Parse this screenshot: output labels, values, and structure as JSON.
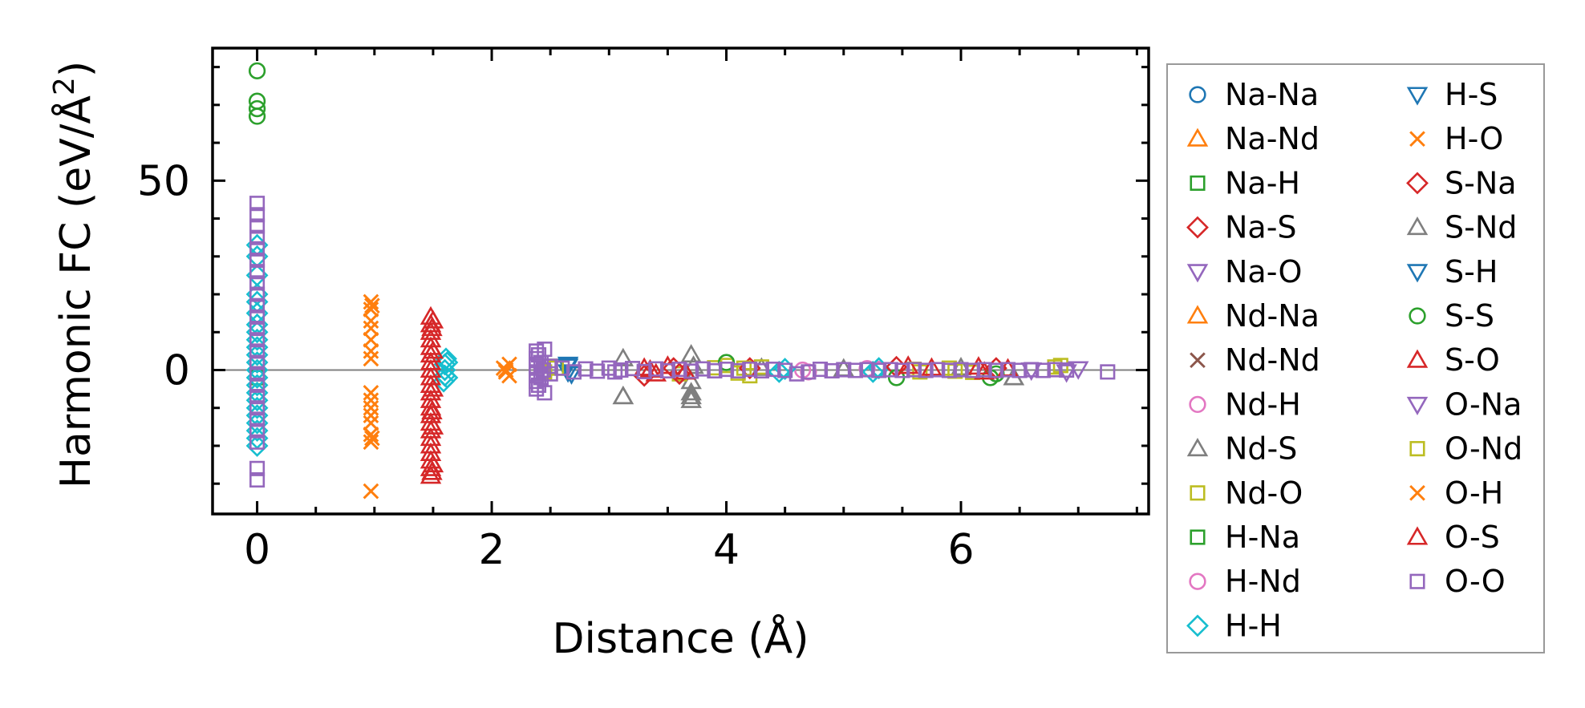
{
  "chart_data": {
    "type": "scatter",
    "xlabel": "Distance (Å)",
    "ylabel": "Harmonic FC (eV/Å²)",
    "ylabel_base": "Harmonic FC (eV/Å",
    "ylabel_sup": "2",
    "ylabel_tail": ")",
    "xlim": [
      -0.38,
      7.6
    ],
    "ylim": [
      -38,
      85
    ],
    "xticks": [
      0,
      2,
      4,
      6
    ],
    "xtick_labels": [
      "0",
      "2",
      "4",
      "6"
    ],
    "yticks": [
      0,
      50
    ],
    "ytick_labels": [
      "0",
      "50"
    ],
    "grid": false,
    "zero_line": true,
    "legend_placement": "outside-right",
    "series": [
      {
        "name": "Na-Na",
        "marker": "circle",
        "color": "#1f77b4",
        "points": []
      },
      {
        "name": "Na-Nd",
        "marker": "triangle-up",
        "color": "#ff7f0e",
        "points": []
      },
      {
        "name": "Na-H",
        "marker": "square",
        "color": "#2ca02c",
        "points": []
      },
      {
        "name": "Na-S",
        "marker": "diamond",
        "color": "#d62728",
        "points": []
      },
      {
        "name": "Na-O",
        "marker": "triangle-down",
        "color": "#9467bd",
        "points": []
      },
      {
        "name": "Nd-Na",
        "marker": "triangle-up",
        "color": "#ff7f0e",
        "points": []
      },
      {
        "name": "Nd-Nd",
        "marker": "x",
        "color": "#8c564b",
        "points": []
      },
      {
        "name": "Nd-H",
        "marker": "circle",
        "color": "#e377c2",
        "points": [
          [
            4.7,
            -0.5
          ],
          [
            5.2,
            0.4
          ]
        ]
      },
      {
        "name": "Nd-S",
        "marker": "triangle-up",
        "color": "#7f7f7f",
        "points": [
          [
            3.12,
            -7
          ],
          [
            3.12,
            3
          ],
          [
            3.7,
            -8
          ],
          [
            3.7,
            -6
          ],
          [
            3.7,
            -3
          ],
          [
            3.7,
            4
          ],
          [
            3.72,
            1
          ],
          [
            4.3,
            0.5
          ],
          [
            5.0,
            0.3
          ],
          [
            6.45,
            -2
          ],
          [
            6.0,
            0.6
          ]
        ]
      },
      {
        "name": "Nd-O",
        "marker": "square",
        "color": "#bcbd22",
        "points": [
          [
            2.45,
            -0.5
          ],
          [
            2.5,
            1
          ],
          [
            3.6,
            -1
          ],
          [
            3.9,
            0.6
          ],
          [
            4.2,
            -1.5
          ],
          [
            4.3,
            0.8
          ],
          [
            4.0,
            1.2
          ],
          [
            4.1,
            -0.8
          ],
          [
            5.65,
            -0.5
          ],
          [
            5.9,
            0.5
          ],
          [
            6.1,
            -0.6
          ],
          [
            6.85,
            1.2
          ]
        ]
      },
      {
        "name": "H-Na",
        "marker": "square",
        "color": "#2ca02c",
        "points": [
          [
            0,
            -1
          ],
          [
            0,
            -2
          ]
        ]
      },
      {
        "name": "H-Nd",
        "marker": "circle",
        "color": "#e377c2",
        "points": [
          [
            4.65,
            0
          ],
          [
            5.3,
            0.2
          ]
        ]
      },
      {
        "name": "H-H",
        "marker": "diamond",
        "color": "#17becf",
        "points": [
          [
            0,
            33
          ],
          [
            0,
            30
          ],
          [
            0,
            25
          ],
          [
            0,
            20
          ],
          [
            0,
            18
          ],
          [
            0,
            15
          ],
          [
            0,
            12
          ],
          [
            0,
            10
          ],
          [
            0,
            8
          ],
          [
            0,
            6
          ],
          [
            0,
            4
          ],
          [
            0,
            2
          ],
          [
            0,
            0
          ],
          [
            0,
            -2
          ],
          [
            0,
            -4
          ],
          [
            0,
            -6
          ],
          [
            0,
            -8
          ],
          [
            0,
            -10
          ],
          [
            0,
            -12
          ],
          [
            0,
            -14
          ],
          [
            0,
            -16
          ],
          [
            0,
            -18
          ],
          [
            0,
            -20
          ],
          [
            1.59,
            -3
          ],
          [
            1.6,
            -1.5
          ],
          [
            1.6,
            0
          ],
          [
            1.6,
            1.5
          ],
          [
            1.61,
            3
          ],
          [
            1.62,
            -2
          ],
          [
            1.62,
            2
          ],
          [
            4.45,
            -0.5
          ],
          [
            4.5,
            0.3
          ],
          [
            5.25,
            -0.5
          ],
          [
            5.3,
            0.5
          ]
        ]
      },
      {
        "name": "H-S",
        "marker": "triangle-down",
        "color": "#1f77b4",
        "points": [
          [
            2.65,
            1.5
          ],
          [
            2.65,
            -0.5
          ]
        ]
      },
      {
        "name": "H-O",
        "marker": "x",
        "color": "#ff7f0e",
        "points": [
          [
            0.97,
            18
          ],
          [
            0.97,
            16
          ],
          [
            0.97,
            13
          ],
          [
            0.97,
            11
          ],
          [
            0.97,
            8
          ],
          [
            0.97,
            5
          ],
          [
            0.97,
            3
          ],
          [
            0.97,
            -6
          ],
          [
            0.97,
            -8
          ],
          [
            0.97,
            -10
          ],
          [
            0.97,
            -12
          ],
          [
            0.97,
            -14
          ],
          [
            0.97,
            -17
          ],
          [
            0.97,
            -19
          ],
          [
            0.97,
            -32
          ],
          [
            2.1,
            0.5
          ],
          [
            2.12,
            -0.5
          ],
          [
            2.15,
            -1.5
          ],
          [
            2.15,
            1.5
          ]
        ]
      },
      {
        "name": "S-Na",
        "marker": "diamond",
        "color": "#d62728",
        "points": [
          [
            3.3,
            -1.5
          ],
          [
            3.55,
            0.5
          ],
          [
            3.6,
            -1
          ],
          [
            4.2,
            0.5
          ],
          [
            5.45,
            0.8
          ],
          [
            6.3,
            0.5
          ]
        ]
      },
      {
        "name": "S-Nd",
        "marker": "triangle-up",
        "color": "#7f7f7f",
        "points": [
          [
            3.12,
            -7
          ],
          [
            3.7,
            -7
          ],
          [
            6.45,
            -2
          ]
        ]
      },
      {
        "name": "S-H",
        "marker": "triangle-down",
        "color": "#1f77b4",
        "points": [
          [
            2.65,
            1
          ],
          [
            2.68,
            -1
          ]
        ]
      },
      {
        "name": "S-S",
        "marker": "circle",
        "color": "#2ca02c",
        "points": [
          [
            0,
            79
          ],
          [
            0,
            71
          ],
          [
            0,
            69
          ],
          [
            0,
            67
          ],
          [
            4.0,
            2
          ],
          [
            5.45,
            -2
          ],
          [
            6.25,
            -2
          ],
          [
            6.3,
            -1
          ]
        ]
      },
      {
        "name": "S-O",
        "marker": "triangle-up",
        "color": "#d62728",
        "points": [
          [
            1.48,
            14
          ],
          [
            1.48,
            12
          ],
          [
            1.48,
            10
          ],
          [
            1.48,
            8
          ],
          [
            1.48,
            6
          ],
          [
            1.48,
            4
          ],
          [
            1.48,
            2
          ],
          [
            1.48,
            0
          ],
          [
            1.48,
            -2
          ],
          [
            1.48,
            -4
          ],
          [
            1.48,
            -6
          ],
          [
            1.48,
            -8
          ],
          [
            1.48,
            -10
          ],
          [
            1.48,
            -12
          ],
          [
            1.48,
            -14
          ],
          [
            1.48,
            -16
          ],
          [
            1.48,
            -18
          ],
          [
            1.48,
            -20
          ],
          [
            1.48,
            -22
          ],
          [
            1.48,
            -24
          ],
          [
            1.48,
            -26
          ],
          [
            1.48,
            -28
          ],
          [
            1.5,
            13
          ],
          [
            1.5,
            5
          ],
          [
            1.5,
            -5
          ],
          [
            1.5,
            -15
          ],
          [
            1.5,
            -25
          ],
          [
            3.3,
            0.5
          ],
          [
            3.4,
            -1
          ],
          [
            3.5,
            1
          ],
          [
            3.65,
            -0.5
          ],
          [
            5.55,
            1
          ],
          [
            5.75,
            0.5
          ],
          [
            6.15,
            0.8
          ],
          [
            6.2,
            -0.5
          ],
          [
            6.4,
            0.3
          ]
        ]
      },
      {
        "name": "O-Na",
        "marker": "triangle-down",
        "color": "#9467bd",
        "points": [
          [
            6.6,
            0
          ],
          [
            6.9,
            -0.5
          ],
          [
            7.0,
            0.3
          ]
        ]
      },
      {
        "name": "O-Nd",
        "marker": "square",
        "color": "#bcbd22",
        "points": [
          [
            2.55,
            0.5
          ],
          [
            4.15,
            0.5
          ],
          [
            5.6,
            0.2
          ],
          [
            5.95,
            -0.3
          ],
          [
            6.8,
            0.8
          ]
        ]
      },
      {
        "name": "O-H",
        "marker": "x",
        "color": "#ff7f0e",
        "points": [
          [
            0.98,
            17
          ],
          [
            0.98,
            -18
          ],
          [
            2.12,
            0
          ]
        ]
      },
      {
        "name": "O-S",
        "marker": "triangle-up",
        "color": "#d62728",
        "points": [
          [
            1.49,
            11
          ],
          [
            1.49,
            -11
          ],
          [
            1.49,
            -27
          ],
          [
            3.35,
            0
          ]
        ]
      },
      {
        "name": "O-O",
        "marker": "square",
        "color": "#9467bd",
        "points": [
          [
            0,
            44
          ],
          [
            0,
            41
          ],
          [
            0,
            38
          ],
          [
            0,
            35
          ],
          [
            0,
            32
          ],
          [
            0,
            29
          ],
          [
            0,
            26
          ],
          [
            0,
            23
          ],
          [
            0,
            20
          ],
          [
            0,
            17
          ],
          [
            0,
            14
          ],
          [
            0,
            11
          ],
          [
            0,
            8
          ],
          [
            0,
            5
          ],
          [
            0,
            2
          ],
          [
            0,
            -1
          ],
          [
            0,
            -4
          ],
          [
            0,
            -7
          ],
          [
            0,
            -10
          ],
          [
            0,
            -13
          ],
          [
            0,
            -16
          ],
          [
            0,
            -19
          ],
          [
            0,
            -26
          ],
          [
            0,
            -29
          ],
          [
            2.38,
            5
          ],
          [
            2.38,
            3
          ],
          [
            2.38,
            1
          ],
          [
            2.38,
            -1
          ],
          [
            2.38,
            -3
          ],
          [
            2.38,
            -5
          ],
          [
            2.4,
            4
          ],
          [
            2.4,
            -4
          ],
          [
            2.42,
            2
          ],
          [
            2.42,
            -2
          ],
          [
            2.44,
            0
          ],
          [
            2.45,
            5.5
          ],
          [
            2.45,
            -6
          ],
          [
            2.5,
            1
          ],
          [
            2.5,
            -1
          ],
          [
            2.6,
            0.5
          ],
          [
            2.7,
            -0.5
          ],
          [
            2.8,
            0.3
          ],
          [
            2.9,
            -0.3
          ],
          [
            3.0,
            0.5
          ],
          [
            3.05,
            -0.5
          ],
          [
            3.1,
            0
          ],
          [
            3.2,
            0.4
          ],
          [
            3.3,
            -0.4
          ],
          [
            3.4,
            0.3
          ],
          [
            3.5,
            -0.2
          ],
          [
            3.6,
            0.2
          ],
          [
            3.7,
            -0.3
          ],
          [
            3.8,
            0.3
          ],
          [
            3.9,
            -0.2
          ],
          [
            4.0,
            0.2
          ],
          [
            4.1,
            -0.2
          ],
          [
            4.2,
            0.2
          ],
          [
            4.3,
            -0.2
          ],
          [
            4.4,
            0.2
          ],
          [
            4.5,
            -0.1
          ],
          [
            4.6,
            -1
          ],
          [
            4.7,
            -0.5
          ],
          [
            4.8,
            0.2
          ],
          [
            4.9,
            -0.2
          ],
          [
            5.0,
            0.1
          ],
          [
            5.1,
            -0.1
          ],
          [
            5.2,
            0.1
          ],
          [
            5.3,
            -0.1
          ],
          [
            5.4,
            0.1
          ],
          [
            5.5,
            -0.1
          ],
          [
            5.6,
            0.1
          ],
          [
            5.7,
            -0.1
          ],
          [
            5.8,
            0.1
          ],
          [
            5.9,
            -0.1
          ],
          [
            6.0,
            0.1
          ],
          [
            6.1,
            -0.1
          ],
          [
            6.2,
            0.1
          ],
          [
            6.3,
            -0.1
          ],
          [
            6.4,
            0.1
          ],
          [
            6.5,
            -0.1
          ],
          [
            6.6,
            0.1
          ],
          [
            6.7,
            -0.1
          ],
          [
            6.8,
            0.1
          ],
          [
            6.9,
            0
          ],
          [
            7.25,
            -0.5
          ]
        ]
      }
    ]
  }
}
